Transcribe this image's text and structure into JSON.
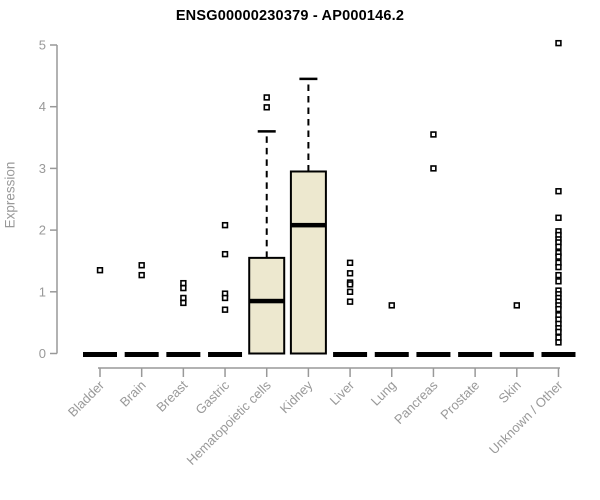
{
  "chart_data": {
    "type": "boxplot",
    "title": "ENSG00000230379 - AP000146.2",
    "ylabel": "Expression",
    "xlabel": "",
    "ylim": [
      0,
      5
    ],
    "yticks": [
      0,
      1,
      2,
      3,
      4,
      5
    ],
    "grid": false,
    "legend": "none",
    "styles": {
      "box_fill": "#EDE8CF",
      "axis_color": "#999999",
      "data_color": "#000000",
      "background": "#FFFFFF"
    },
    "categories": [
      {
        "label": "Bladder",
        "zero_bar": true,
        "box": null,
        "points": [
          1.35
        ]
      },
      {
        "label": "Brain",
        "zero_bar": true,
        "box": null,
        "points": [
          1.43,
          1.27
        ]
      },
      {
        "label": "Breast",
        "zero_bar": true,
        "box": null,
        "points": [
          1.14,
          1.06,
          0.9,
          0.82
        ]
      },
      {
        "label": "Gastric",
        "zero_bar": true,
        "box": null,
        "points": [
          2.08,
          1.61,
          0.97,
          0.9,
          0.71
        ]
      },
      {
        "label": "Hematopoietic cells",
        "zero_bar": false,
        "box": {
          "q1": 0,
          "median": 0.85,
          "q3": 1.55,
          "whisker_high": 3.6
        },
        "points": [
          4.15,
          3.99
        ]
      },
      {
        "label": "Kidney",
        "zero_bar": false,
        "box": {
          "q1": 0,
          "median": 2.08,
          "q3": 2.95,
          "whisker_high": 4.45
        },
        "points": []
      },
      {
        "label": "Liver",
        "zero_bar": true,
        "box": null,
        "points": [
          1.47,
          1.3,
          1.15,
          1.12,
          1.0,
          0.84
        ]
      },
      {
        "label": "Lung",
        "zero_bar": true,
        "box": null,
        "points": [
          0.78
        ]
      },
      {
        "label": "Pancreas",
        "zero_bar": true,
        "box": null,
        "points": [
          3.55,
          3.0
        ]
      },
      {
        "label": "Prostate",
        "zero_bar": true,
        "box": null,
        "points": []
      },
      {
        "label": "Skin",
        "zero_bar": true,
        "box": null,
        "points": [
          0.78
        ]
      },
      {
        "label": "Unknown / Other",
        "zero_bar": true,
        "box": null,
        "points": [
          5.03,
          2.63,
          2.2,
          1.98,
          1.92,
          1.85,
          1.8,
          1.73,
          1.63,
          1.57,
          1.47,
          1.4,
          1.27,
          1.17,
          1.02,
          0.96,
          0.9,
          0.84,
          0.78,
          0.72,
          0.62,
          0.55,
          0.48,
          0.41,
          0.35,
          0.26,
          0.18
        ]
      }
    ]
  }
}
